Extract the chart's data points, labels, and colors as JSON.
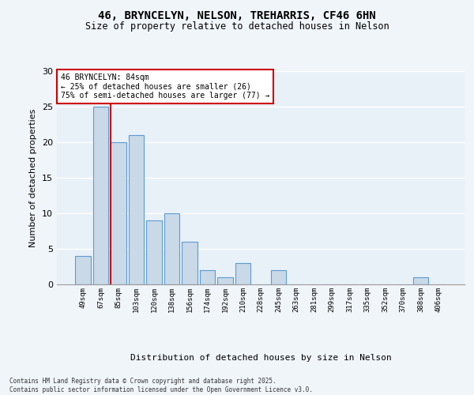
{
  "title": "46, BRYNCELYN, NELSON, TREHARRIS, CF46 6HN",
  "subtitle": "Size of property relative to detached houses in Nelson",
  "xlabel": "Distribution of detached houses by size in Nelson",
  "ylabel": "Number of detached properties",
  "categories": [
    "49sqm",
    "67sqm",
    "85sqm",
    "103sqm",
    "120sqm",
    "138sqm",
    "156sqm",
    "174sqm",
    "192sqm",
    "210sqm",
    "228sqm",
    "245sqm",
    "263sqm",
    "281sqm",
    "299sqm",
    "317sqm",
    "335sqm",
    "352sqm",
    "370sqm",
    "388sqm",
    "406sqm"
  ],
  "values": [
    4,
    25,
    20,
    21,
    9,
    10,
    6,
    2,
    1,
    3,
    0,
    2,
    0,
    0,
    0,
    0,
    0,
    0,
    0,
    1,
    0
  ],
  "bar_color": "#c9d9e8",
  "bar_edge_color": "#5b9bd5",
  "fig_background_color": "#f0f5fa",
  "plot_background_color": "#e8f0f8",
  "grid_color": "#ffffff",
  "ylim": [
    0,
    30
  ],
  "yticks": [
    0,
    5,
    10,
    15,
    20,
    25,
    30
  ],
  "property_line_index": 2,
  "property_line_color": "#cc0000",
  "annotation_title": "46 BRYNCELYN: 84sqm",
  "annotation_line1": "← 25% of detached houses are smaller (26)",
  "annotation_line2": "75% of semi-detached houses are larger (77) →",
  "annotation_box_color": "#cc0000",
  "footer_line1": "Contains HM Land Registry data © Crown copyright and database right 2025.",
  "footer_line2": "Contains public sector information licensed under the Open Government Licence v3.0."
}
